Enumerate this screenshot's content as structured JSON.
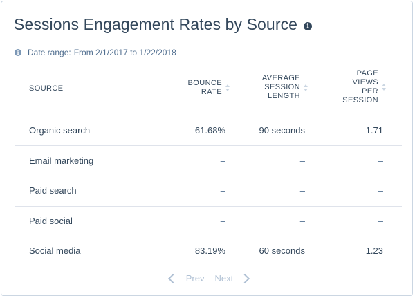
{
  "header": {
    "title": "Sessions Engagement Rates by Source",
    "info_glyph": "i"
  },
  "date_range": {
    "info_glyph": "i",
    "label": "Date range:",
    "value": "From 2/1/2017 to 1/22/2018"
  },
  "table": {
    "columns": {
      "source": "SOURCE",
      "bounce_rate": "BOUNCE RATE",
      "avg_session_length": "AVERAGE SESSION LENGTH",
      "page_views_per_session": "PAGE VIEWS PER SESSION"
    },
    "rows": [
      {
        "source": "Organic search",
        "bounce_rate": "61.68%",
        "avg_session_length": "90 seconds",
        "page_views_per_session": "1.71"
      },
      {
        "source": "Email marketing",
        "bounce_rate": "–",
        "avg_session_length": "–",
        "page_views_per_session": "–"
      },
      {
        "source": "Paid search",
        "bounce_rate": "–",
        "avg_session_length": "–",
        "page_views_per_session": "–"
      },
      {
        "source": "Paid social",
        "bounce_rate": "–",
        "avg_session_length": "–",
        "page_views_per_session": "–"
      },
      {
        "source": "Social media",
        "bounce_rate": "83.19%",
        "avg_session_length": "60 seconds",
        "page_views_per_session": "1.23"
      }
    ]
  },
  "pagination": {
    "prev_label": "Prev",
    "next_label": "Next"
  },
  "colors": {
    "text": "#33475b",
    "muted": "#516f90",
    "border": "#cbd6e2",
    "divider": "#dfe3eb",
    "disabled": "#b0c1d4"
  }
}
